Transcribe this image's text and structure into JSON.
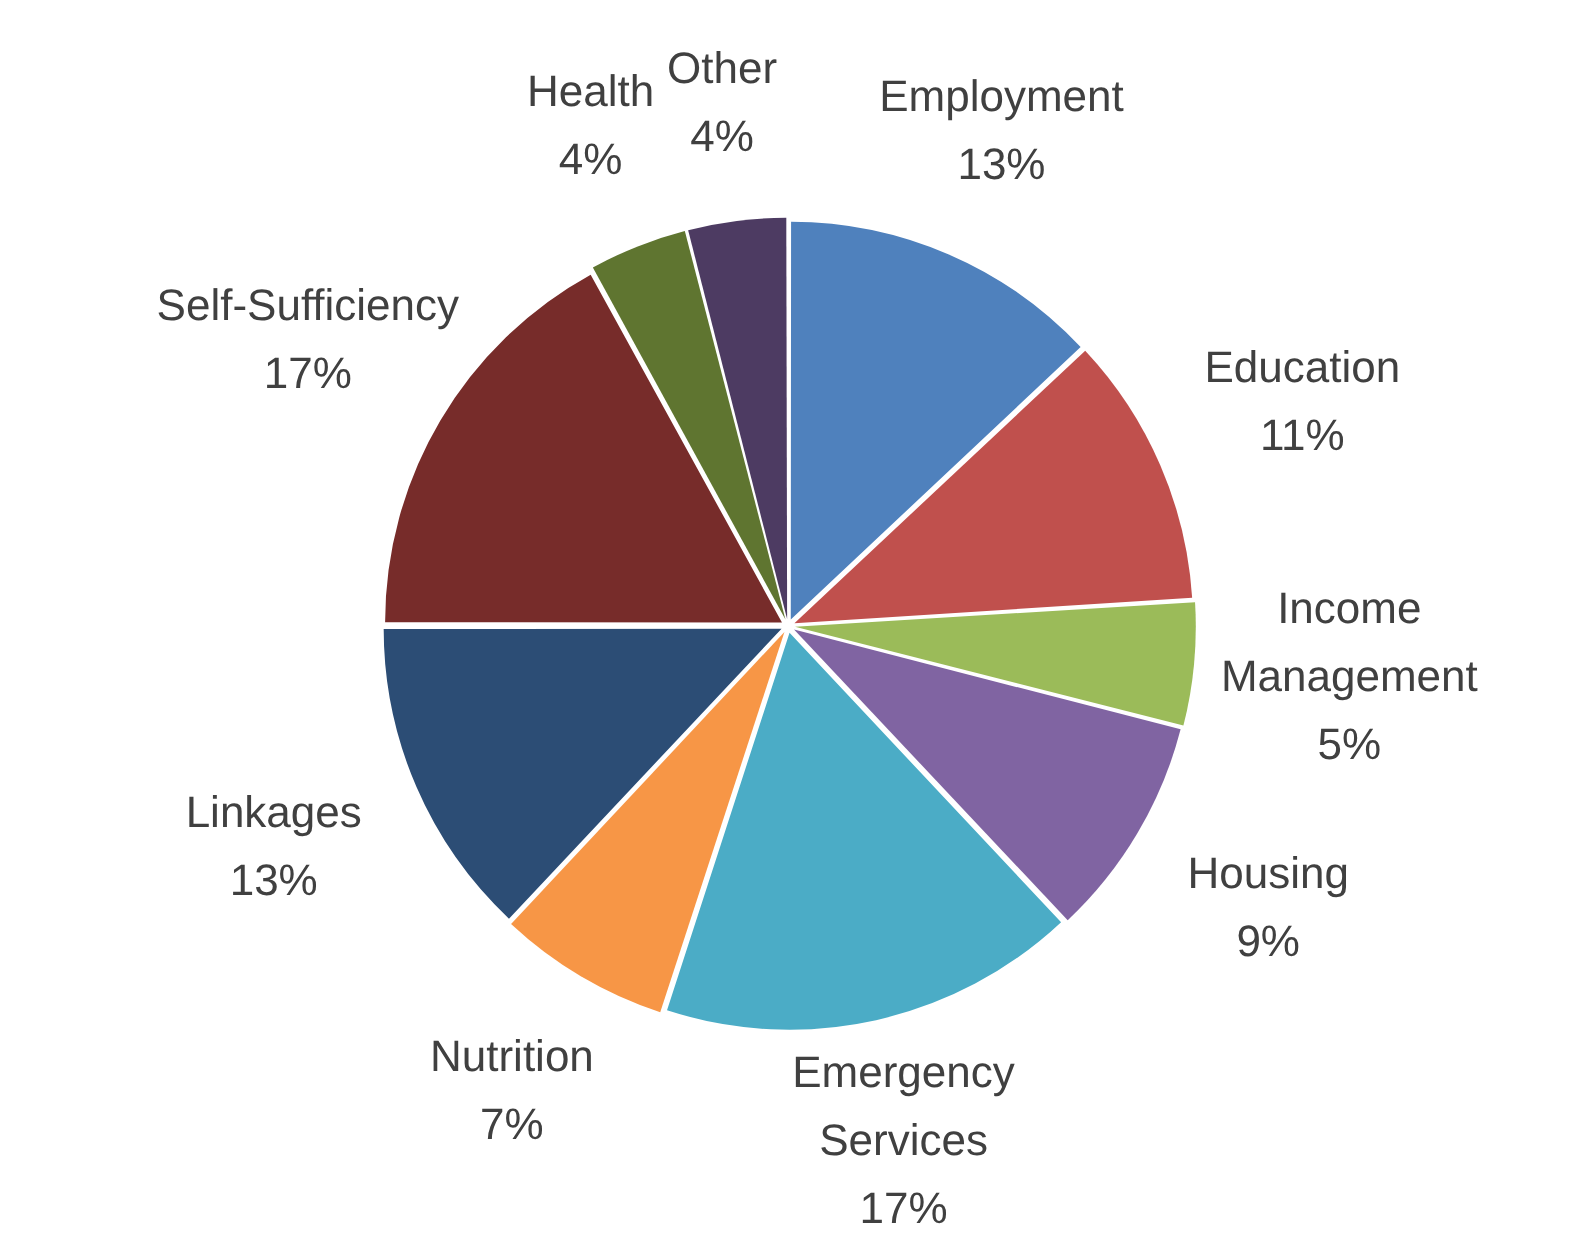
{
  "chart_data": {
    "type": "pie",
    "categories": [
      "Employment",
      "Education",
      "Income Management",
      "Housing",
      "Emergency Services",
      "Nutrition",
      "Linkages",
      "Self-Sufficiency",
      "Health",
      "Other"
    ],
    "values": [
      13,
      11,
      5,
      9,
      17,
      7,
      13,
      17,
      4,
      4
    ],
    "value_labels": [
      "13%",
      "11%",
      "5%",
      "9%",
      "17%",
      "7%",
      "13%",
      "17%",
      "4%",
      "4%"
    ],
    "colors": [
      "#4f81bd",
      "#c0504d",
      "#9bbb59",
      "#8064a2",
      "#4bacc6",
      "#f79646",
      "#2c4d75",
      "#772c2a",
      "#5f7530",
      "#4d3b62"
    ]
  }
}
